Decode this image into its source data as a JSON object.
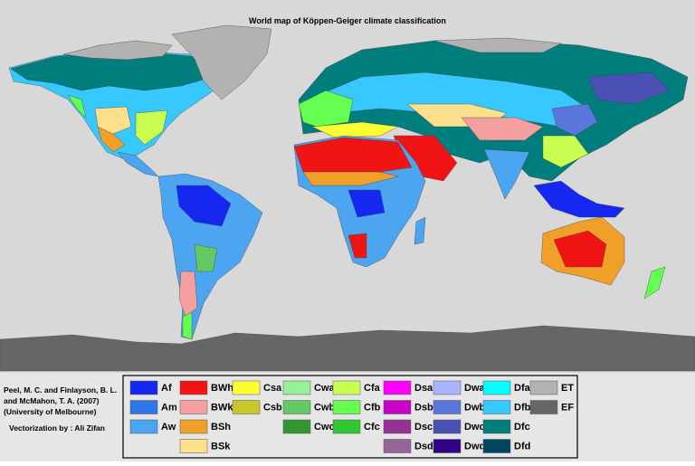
{
  "title": "World map of Köppen-Geiger climate classification",
  "credits": [
    "Peel, M. C. and Finlayson, B. L.",
    "and McMahon, T. A. (2007)",
    "(University of Melbourne)"
  ],
  "vectorization": "Vectorization by : Ali Zifan",
  "legend": {
    "columns": [
      [
        {
          "code": "Af",
          "color": "#1428f0"
        },
        {
          "code": "Am",
          "color": "#2d78e6"
        },
        {
          "code": "Aw",
          "color": "#4ba5f0"
        }
      ],
      [
        {
          "code": "BWh",
          "color": "#f01414"
        },
        {
          "code": "BWk",
          "color": "#f5a0a0"
        },
        {
          "code": "BSh",
          "color": "#f0a028"
        },
        {
          "code": "BSk",
          "color": "#fde08c"
        }
      ],
      [
        {
          "code": "Csa",
          "color": "#ffff32"
        },
        {
          "code": "Csb",
          "color": "#c8c82d"
        }
      ],
      [
        {
          "code": "Cwa",
          "color": "#96f096"
        },
        {
          "code": "Cwb",
          "color": "#64c864"
        },
        {
          "code": "Cwc",
          "color": "#329632"
        }
      ],
      [
        {
          "code": "Cfa",
          "color": "#c8ff50"
        },
        {
          "code": "Cfb",
          "color": "#64ff50"
        },
        {
          "code": "Cfc",
          "color": "#32c832"
        }
      ],
      [
        {
          "code": "Dsa",
          "color": "#ff00ff"
        },
        {
          "code": "Dsb",
          "color": "#c800c8"
        },
        {
          "code": "Dsc",
          "color": "#963296"
        },
        {
          "code": "Dsd",
          "color": "#966496"
        }
      ],
      [
        {
          "code": "Dwa",
          "color": "#aab4ff"
        },
        {
          "code": "Dwb",
          "color": "#5a78dc"
        },
        {
          "code": "Dwc",
          "color": "#4b50b4"
        },
        {
          "code": "Dwd",
          "color": "#320087"
        }
      ],
      [
        {
          "code": "Dfa",
          "color": "#00ffff"
        },
        {
          "code": "Dfb",
          "color": "#37c8ff"
        },
        {
          "code": "Dfc",
          "color": "#007d7d"
        },
        {
          "code": "Dfd",
          "color": "#00465f"
        }
      ],
      [
        {
          "code": "ET",
          "color": "#b2b2b2"
        },
        {
          "code": "EF",
          "color": "#666666"
        }
      ]
    ]
  }
}
